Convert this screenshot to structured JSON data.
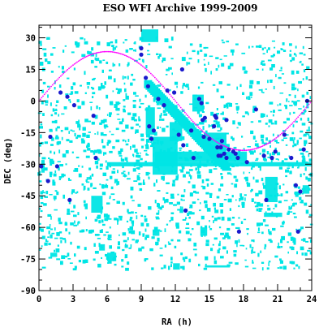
{
  "chart_data": {
    "type": "scatter",
    "title": "ESO WFI Archive 1999-2009",
    "xlabel": "RA (h)",
    "ylabel": "DEC (deg)",
    "xlim": [
      0,
      24
    ],
    "ylim": [
      -90,
      36
    ],
    "x_ticks": [
      0,
      3,
      6,
      9,
      12,
      15,
      18,
      21,
      24
    ],
    "y_ticks": [
      30,
      15,
      0,
      -15,
      -30,
      -45,
      -60,
      -75,
      -90
    ],
    "grid": false,
    "legend": "none",
    "colors": {
      "fields": "#00e5e5",
      "highlight": "#1a1acc",
      "ecliptic": "#ff00ff",
      "axes": "#000000"
    },
    "series": [
      {
        "kind": "field-regions",
        "color": "#00e5e5",
        "regions": [
          {
            "ra": [
              10.0,
              12.2
            ],
            "dec": [
              -35,
              -17
            ]
          },
          {
            "ra": [
              10.2,
              18.3
            ],
            "dec": [
              -29,
              -24
            ]
          },
          {
            "ra": [
              6.0,
              24.0
            ],
            "dec": [
              -31,
              -29
            ]
          },
          {
            "ra": [
              4.6,
              5.6
            ],
            "dec": [
              -53,
              -45
            ]
          },
          {
            "ra": [
              19.9,
              21.0
            ],
            "dec": [
              -48,
              -36
            ]
          },
          {
            "ra": [
              19.8,
              21.4
            ],
            "dec": [
              -55,
              -53
            ]
          },
          {
            "ra": [
              14.5,
              16.5
            ],
            "dec": [
              -24,
              -15
            ]
          },
          {
            "ra": [
              9.4,
              10.2
            ],
            "dec": [
              -16,
              -3
            ]
          },
          {
            "ra": [
              13.5,
              14.5
            ],
            "dec": [
              -5,
              3
            ]
          },
          {
            "ra": [
              9.0,
              10.5
            ],
            "dec": [
              28,
              34
            ]
          },
          {
            "ra": [
              11.5,
              12.6
            ],
            "dec": [
              -19,
              -10
            ]
          },
          {
            "ra": [
              14.6,
              16.8
            ],
            "dec": [
              -79,
              -78
            ]
          },
          {
            "ra": [
              11.8,
              12.4
            ],
            "dec": [
              -80,
              -77
            ]
          },
          {
            "ra": [
              6.0,
              6.8
            ],
            "dec": [
              -76,
              -72
            ]
          },
          {
            "ra": [
              5.3,
              5.8
            ],
            "dec": [
              -71,
              -68
            ]
          },
          {
            "ra": [
              1.0,
              1.6
            ],
            "dec": [
              -74,
              -72
            ]
          },
          {
            "ra": [
              10.0,
              10.6
            ],
            "dec": [
              -64,
              -61
            ]
          },
          {
            "ra": [
              14.2,
              14.8
            ],
            "dec": [
              -64,
              -60
            ]
          },
          {
            "ra": [
              23.2,
              23.8
            ],
            "dec": [
              -44,
              -40
            ]
          },
          {
            "ra": [
              0.2,
              0.5
            ],
            "dec": [
              -34,
              -28
            ]
          }
        ]
      },
      {
        "kind": "points",
        "color": "#1a1acc",
        "points": [
          [
            0.2,
            -31
          ],
          [
            0.8,
            -38
          ],
          [
            1.0,
            -17
          ],
          [
            1.6,
            -31
          ],
          [
            1.9,
            4
          ],
          [
            2.5,
            2
          ],
          [
            2.7,
            -47
          ],
          [
            3.1,
            -2
          ],
          [
            4.8,
            -7
          ],
          [
            5.0,
            -27
          ],
          [
            9.0,
            25
          ],
          [
            9.0,
            22
          ],
          [
            9.4,
            11
          ],
          [
            9.6,
            7
          ],
          [
            9.7,
            -12
          ],
          [
            9.9,
            -18
          ],
          [
            10.1,
            -14
          ],
          [
            10.5,
            1
          ],
          [
            11.0,
            -2
          ],
          [
            11.3,
            5
          ],
          [
            11.9,
            4
          ],
          [
            12.3,
            -16
          ],
          [
            12.6,
            15
          ],
          [
            12.7,
            -21
          ],
          [
            12.9,
            -52
          ],
          [
            13.4,
            -14
          ],
          [
            13.6,
            -27
          ],
          [
            14.1,
            1
          ],
          [
            14.3,
            -1
          ],
          [
            14.4,
            -9
          ],
          [
            14.5,
            -17
          ],
          [
            14.6,
            -8
          ],
          [
            15.0,
            -18
          ],
          [
            15.4,
            -12
          ],
          [
            15.5,
            -7
          ],
          [
            15.6,
            -8
          ],
          [
            15.7,
            -22
          ],
          [
            15.8,
            -26
          ],
          [
            16.0,
            -26
          ],
          [
            16.0,
            -22
          ],
          [
            16.1,
            -19
          ],
          [
            16.3,
            -25
          ],
          [
            16.5,
            -9
          ],
          [
            16.5,
            -27
          ],
          [
            16.7,
            -23
          ],
          [
            17.1,
            -24
          ],
          [
            17.3,
            -25
          ],
          [
            17.5,
            -27
          ],
          [
            17.6,
            -62
          ],
          [
            18.3,
            -29
          ],
          [
            19.1,
            -4
          ],
          [
            19.8,
            -26
          ],
          [
            20.0,
            -47
          ],
          [
            20.5,
            -27
          ],
          [
            20.8,
            -24
          ],
          [
            21.6,
            -16
          ],
          [
            22.2,
            -27
          ],
          [
            22.6,
            -40
          ],
          [
            22.8,
            -62
          ],
          [
            23.0,
            -43
          ],
          [
            23.3,
            -23
          ],
          [
            23.6,
            0
          ]
        ]
      },
      {
        "kind": "ecliptic",
        "color": "#ff00ff",
        "obliquity_deg": 23.44
      }
    ]
  }
}
